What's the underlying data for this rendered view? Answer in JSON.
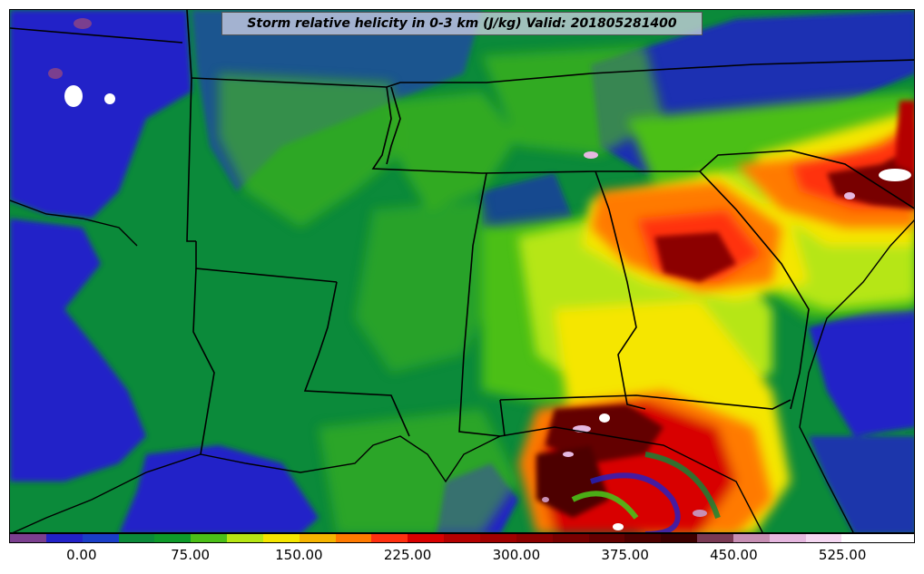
{
  "title": "Storm relative helicity in 0-3 km (J/kg) Valid: 201805281400",
  "colorbar": {
    "min": -50,
    "max": 575,
    "step": 25,
    "colors": [
      "#7b3f8f",
      "#2222c8",
      "#1a3ec8",
      "#0b8a3a",
      "#0e9a2a",
      "#4bbf18",
      "#b6e614",
      "#f5e600",
      "#f5b400",
      "#ff7a00",
      "#ff3010",
      "#d80000",
      "#b40000",
      "#a00000",
      "#8c0000",
      "#780000",
      "#640000",
      "#4e0000",
      "#3c0000",
      "#7a3a54",
      "#c78fb4",
      "#e6b8e0",
      "#f5d8f2",
      "#ffffff",
      "#ffffff"
    ],
    "tick_labels": [
      "0.00",
      "75.00",
      "150.00",
      "225.00",
      "300.00",
      "375.00",
      "450.00",
      "525.00"
    ],
    "tick_values": [
      0,
      75,
      150,
      225,
      300,
      375,
      450,
      525
    ]
  }
}
